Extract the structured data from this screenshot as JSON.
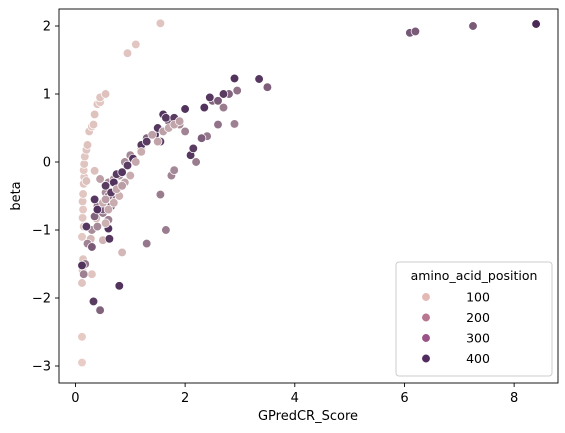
{
  "chart_data": {
    "type": "scatter",
    "title": "",
    "xlabel": "GPredCR_Score",
    "ylabel": "beta",
    "xlim": [
      -0.3,
      8.8
    ],
    "ylim": [
      -3.25,
      2.25
    ],
    "xticks": [
      0,
      2,
      4,
      6,
      8
    ],
    "yticks": [
      -3,
      -2,
      -1,
      0,
      1,
      2
    ],
    "grid": false,
    "hue": "amino_acid_position",
    "legend": {
      "title": "amino_acid_position",
      "placement": "lower-right",
      "entries": [
        {
          "label": "100",
          "color": "#e4b8b4"
        },
        {
          "label": "200",
          "color": "#b87690"
        },
        {
          "label": "300",
          "color": "#9a5386"
        },
        {
          "label": "400",
          "color": "#532c5f"
        }
      ]
    },
    "hue_range": [
      30,
      470
    ],
    "hue_colors": [
      "#ecd0c8",
      "#3e1f4f"
    ],
    "points": [
      [
        0.12,
        -2.95,
        40
      ],
      [
        0.12,
        -2.57,
        45
      ],
      [
        0.12,
        -1.78,
        60
      ],
      [
        0.13,
        -1.6,
        55
      ],
      [
        0.14,
        -1.43,
        60
      ],
      [
        0.12,
        -1.1,
        50
      ],
      [
        0.15,
        -0.95,
        60
      ],
      [
        0.13,
        -0.82,
        55
      ],
      [
        0.14,
        -0.7,
        50
      ],
      [
        0.13,
        -0.58,
        60
      ],
      [
        0.14,
        -0.47,
        55
      ],
      [
        0.15,
        -0.32,
        60
      ],
      [
        0.16,
        -0.22,
        55
      ],
      [
        0.15,
        -0.12,
        50
      ],
      [
        0.16,
        -0.03,
        60
      ],
      [
        0.17,
        0.08,
        55
      ],
      [
        0.2,
        0.18,
        60
      ],
      [
        0.22,
        0.25,
        65
      ],
      [
        0.2,
        -0.28,
        70
      ],
      [
        0.25,
        0.45,
        60
      ],
      [
        0.3,
        0.52,
        55
      ],
      [
        0.33,
        0.55,
        60
      ],
      [
        0.35,
        0.7,
        65
      ],
      [
        0.4,
        0.85,
        60
      ],
      [
        0.45,
        0.88,
        55
      ],
      [
        0.45,
        0.95,
        60
      ],
      [
        0.55,
        1.0,
        65
      ],
      [
        0.35,
        -0.13,
        70
      ],
      [
        0.3,
        -1.65,
        60
      ],
      [
        0.38,
        -0.83,
        80
      ],
      [
        0.28,
        -1.13,
        90
      ],
      [
        0.5,
        -1.15,
        100
      ],
      [
        0.95,
        1.6,
        60
      ],
      [
        1.1,
        1.73,
        55
      ],
      [
        1.55,
        2.04,
        60
      ],
      [
        0.85,
        -1.33,
        90
      ],
      [
        0.15,
        -1.65,
        230
      ],
      [
        0.18,
        -1.5,
        250
      ],
      [
        0.22,
        -1.2,
        220
      ],
      [
        0.3,
        -1.0,
        200
      ],
      [
        0.4,
        -0.95,
        210
      ],
      [
        0.5,
        -0.6,
        190
      ],
      [
        0.55,
        -0.45,
        200
      ],
      [
        0.6,
        -0.3,
        210
      ],
      [
        0.7,
        -0.25,
        180
      ],
      [
        0.8,
        -0.2,
        190
      ],
      [
        0.9,
        0.0,
        200
      ],
      [
        1.0,
        0.1,
        210
      ],
      [
        1.2,
        0.2,
        190
      ],
      [
        1.3,
        -1.2,
        250
      ],
      [
        1.55,
        -0.48,
        240
      ],
      [
        1.65,
        -1.0,
        240
      ],
      [
        1.75,
        -0.2,
        220
      ],
      [
        1.8,
        -0.12,
        210
      ],
      [
        1.9,
        0.55,
        200
      ],
      [
        2.0,
        0.45,
        220
      ],
      [
        2.15,
        0.2,
        230
      ],
      [
        2.2,
        0.0,
        240
      ],
      [
        2.4,
        0.38,
        250
      ],
      [
        2.6,
        0.55,
        260
      ],
      [
        2.7,
        0.8,
        240
      ],
      [
        2.9,
        0.56,
        230
      ],
      [
        2.95,
        1.05,
        260
      ],
      [
        0.6,
        -0.85,
        230
      ],
      [
        0.5,
        -0.75,
        240
      ],
      [
        0.4,
        -0.65,
        250
      ],
      [
        0.7,
        -0.55,
        260
      ],
      [
        0.75,
        -0.35,
        240
      ],
      [
        0.45,
        -2.18,
        300
      ],
      [
        0.3,
        -1.25,
        320
      ],
      [
        0.35,
        -0.8,
        300
      ],
      [
        0.5,
        -0.7,
        310
      ],
      [
        0.6,
        -0.5,
        300
      ],
      [
        0.65,
        -0.65,
        320
      ],
      [
        1.3,
        0.35,
        300
      ],
      [
        1.5,
        0.5,
        310
      ],
      [
        1.7,
        0.6,
        300
      ],
      [
        2.3,
        0.35,
        310
      ],
      [
        2.5,
        0.9,
        300
      ],
      [
        2.6,
        0.9,
        320
      ],
      [
        2.8,
        1.0,
        300
      ],
      [
        3.5,
        1.1,
        310
      ],
      [
        6.1,
        1.9,
        330
      ],
      [
        6.2,
        1.92,
        320
      ],
      [
        7.25,
        2.0,
        320
      ],
      [
        0.12,
        -1.52,
        420
      ],
      [
        0.2,
        -0.95,
        410
      ],
      [
        0.33,
        -2.05,
        400
      ],
      [
        0.35,
        -0.55,
        410
      ],
      [
        0.4,
        -0.7,
        420
      ],
      [
        0.55,
        -0.35,
        400
      ],
      [
        0.6,
        -0.98,
        420
      ],
      [
        0.62,
        -1.13,
        410
      ],
      [
        0.65,
        -0.45,
        400
      ],
      [
        0.7,
        -0.3,
        420
      ],
      [
        0.75,
        -0.18,
        400
      ],
      [
        0.8,
        -1.82,
        420
      ],
      [
        0.85,
        -0.15,
        410
      ],
      [
        0.95,
        -0.05,
        400
      ],
      [
        1.05,
        0.05,
        420
      ],
      [
        1.2,
        0.25,
        410
      ],
      [
        1.3,
        0.3,
        400
      ],
      [
        1.45,
        0.4,
        420
      ],
      [
        1.5,
        0.5,
        410
      ],
      [
        1.55,
        0.3,
        400
      ],
      [
        1.6,
        0.7,
        420
      ],
      [
        1.65,
        0.65,
        410
      ],
      [
        1.8,
        0.65,
        400
      ],
      [
        2.0,
        0.78,
        420
      ],
      [
        2.1,
        0.1,
        410
      ],
      [
        2.15,
        0.2,
        400
      ],
      [
        2.35,
        0.8,
        420
      ],
      [
        2.45,
        0.95,
        410
      ],
      [
        2.7,
        1.0,
        400
      ],
      [
        2.9,
        1.23,
        420
      ],
      [
        3.35,
        1.22,
        410
      ],
      [
        8.4,
        2.03,
        440
      ],
      [
        0.5,
        -0.6,
        120
      ],
      [
        0.55,
        -0.9,
        110
      ],
      [
        0.6,
        -0.7,
        130
      ],
      [
        0.7,
        -0.6,
        120
      ],
      [
        0.8,
        -0.5,
        110
      ],
      [
        0.75,
        -0.4,
        130
      ],
      [
        0.9,
        -0.3,
        140
      ],
      [
        1.0,
        -0.2,
        120
      ],
      [
        1.1,
        0.0,
        130
      ],
      [
        1.2,
        0.15,
        120
      ],
      [
        1.4,
        0.4,
        150
      ],
      [
        1.5,
        0.3,
        140
      ],
      [
        1.6,
        0.45,
        150
      ],
      [
        1.7,
        0.5,
        130
      ],
      [
        1.8,
        0.55,
        140
      ],
      [
        1.9,
        0.6,
        150
      ],
      [
        0.45,
        -0.25,
        150
      ],
      [
        0.55,
        -0.55,
        160
      ],
      [
        0.85,
        -0.35,
        160
      ]
    ]
  }
}
